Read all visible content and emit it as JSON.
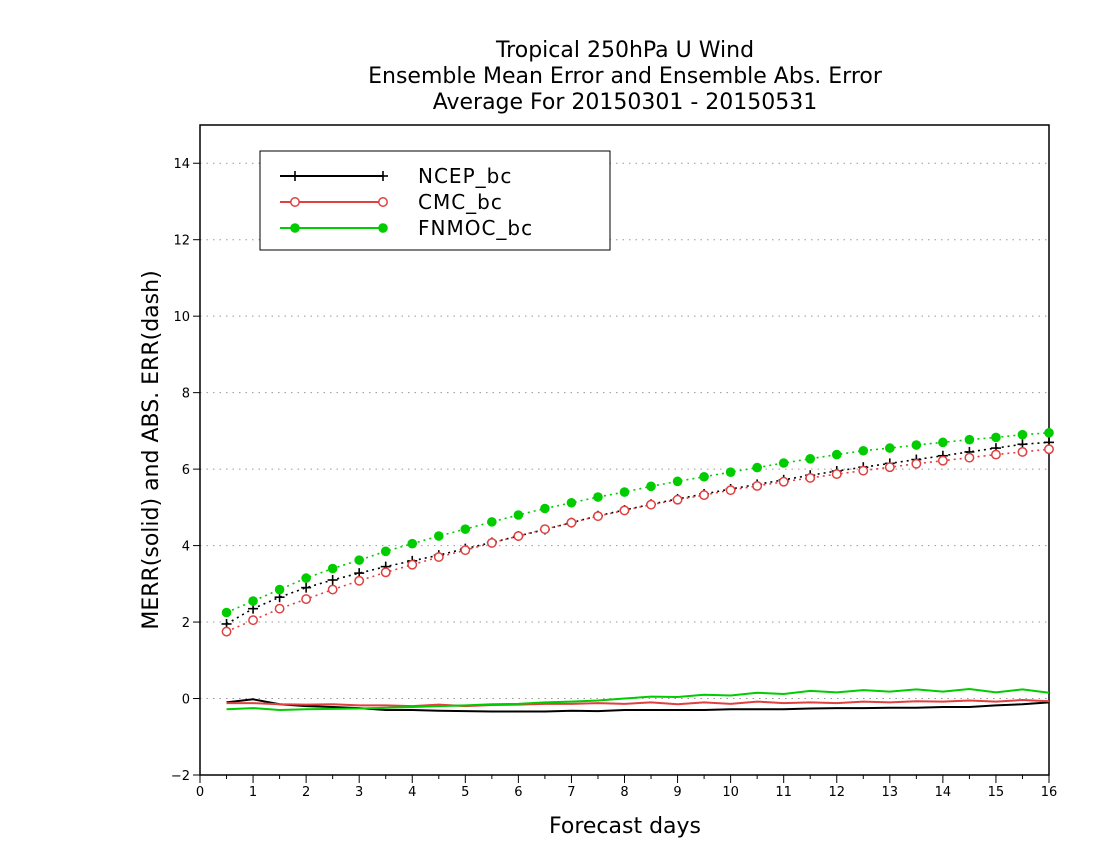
{
  "chart_data": {
    "type": "line",
    "title_lines": [
      "Tropical 250hPa U Wind",
      "Ensemble Mean Error and Ensemble Abs. Error",
      "Average For 20150301 - 20150531"
    ],
    "xlabel": "Forecast days",
    "ylabel": "MERR(solid) and ABS. ERR(dash)",
    "xlim": [
      0,
      16
    ],
    "ylim": [
      -2,
      15
    ],
    "xticks": [
      "0",
      "1",
      "2",
      "3",
      "4",
      "5",
      "6",
      "7",
      "8",
      "9",
      "10",
      "11",
      "12",
      "13",
      "14",
      "15",
      "16"
    ],
    "yticks": [
      "−2",
      "0",
      "2",
      "4",
      "6",
      "8",
      "10",
      "12",
      "14"
    ],
    "grid": "horizontal dotted",
    "legend_position": "top-left",
    "x": [
      0.5,
      1,
      1.5,
      2,
      2.5,
      3,
      3.5,
      4,
      4.5,
      5,
      5.5,
      6,
      6.5,
      7,
      7.5,
      8,
      8.5,
      9,
      9.5,
      10,
      10.5,
      11,
      11.5,
      12,
      12.5,
      13,
      13.5,
      14,
      14.5,
      15,
      15.5,
      16
    ],
    "series": [
      {
        "name": "NCEP_bc",
        "color": "#000000",
        "marker": "plus",
        "mean_error": [
          -0.1,
          -0.02,
          -0.15,
          -0.2,
          -0.22,
          -0.25,
          -0.3,
          -0.3,
          -0.32,
          -0.33,
          -0.34,
          -0.34,
          -0.34,
          -0.32,
          -0.33,
          -0.3,
          -0.3,
          -0.3,
          -0.3,
          -0.28,
          -0.28,
          -0.28,
          -0.26,
          -0.25,
          -0.25,
          -0.24,
          -0.24,
          -0.22,
          -0.22,
          -0.18,
          -0.15,
          -0.1
        ],
        "abs_error": [
          1.95,
          2.35,
          2.65,
          2.9,
          3.1,
          3.28,
          3.45,
          3.6,
          3.75,
          3.92,
          4.08,
          4.25,
          4.42,
          4.6,
          4.78,
          4.93,
          5.08,
          5.22,
          5.35,
          5.48,
          5.6,
          5.72,
          5.84,
          5.95,
          6.05,
          6.15,
          6.25,
          6.35,
          6.45,
          6.55,
          6.65,
          6.7
        ]
      },
      {
        "name": "CMC_bc",
        "color": "#e04040",
        "marker": "open-circle",
        "mean_error": [
          -0.12,
          -0.12,
          -0.15,
          -0.16,
          -0.15,
          -0.18,
          -0.18,
          -0.2,
          -0.16,
          -0.2,
          -0.17,
          -0.16,
          -0.14,
          -0.14,
          -0.12,
          -0.14,
          -0.1,
          -0.15,
          -0.1,
          -0.14,
          -0.08,
          -0.12,
          -0.1,
          -0.12,
          -0.08,
          -0.1,
          -0.07,
          -0.08,
          -0.05,
          -0.08,
          -0.04,
          -0.07
        ],
        "abs_error": [
          1.75,
          2.05,
          2.35,
          2.6,
          2.85,
          3.08,
          3.3,
          3.5,
          3.7,
          3.88,
          4.07,
          4.25,
          4.43,
          4.6,
          4.77,
          4.92,
          5.07,
          5.2,
          5.32,
          5.45,
          5.56,
          5.67,
          5.77,
          5.87,
          5.96,
          6.05,
          6.14,
          6.22,
          6.3,
          6.38,
          6.45,
          6.52
        ]
      },
      {
        "name": "FNMOC_bc",
        "color": "#00cc00",
        "marker": "filled-circle",
        "mean_error": [
          -0.28,
          -0.25,
          -0.3,
          -0.28,
          -0.27,
          -0.26,
          -0.24,
          -0.22,
          -0.2,
          -0.18,
          -0.15,
          -0.14,
          -0.1,
          -0.08,
          -0.05,
          0,
          0.05,
          0.04,
          0.1,
          0.08,
          0.15,
          0.12,
          0.2,
          0.16,
          0.22,
          0.18,
          0.24,
          0.18,
          0.25,
          0.16,
          0.24,
          0.15
        ],
        "abs_error": [
          2.25,
          2.55,
          2.85,
          3.15,
          3.4,
          3.62,
          3.85,
          4.05,
          4.25,
          4.43,
          4.62,
          4.8,
          4.97,
          5.12,
          5.27,
          5.4,
          5.55,
          5.68,
          5.8,
          5.92,
          6.04,
          6.16,
          6.27,
          6.38,
          6.48,
          6.55,
          6.63,
          6.7,
          6.77,
          6.83,
          6.9,
          6.95
        ]
      }
    ]
  }
}
